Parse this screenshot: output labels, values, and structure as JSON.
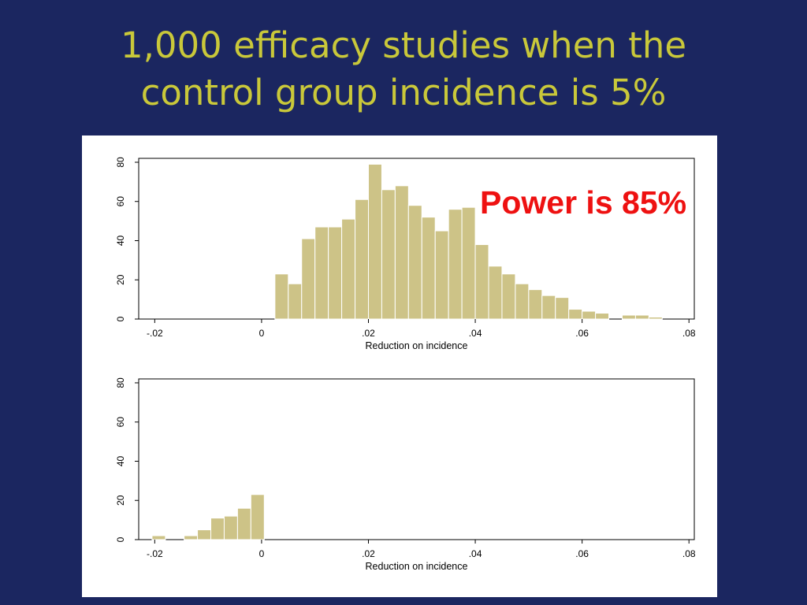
{
  "slide": {
    "title_line1": "1,000 efficacy studies when the",
    "title_line2": "control group incidence is 5%",
    "annotation": "Power is 85%",
    "annotation_color": "#ee1111",
    "title_color": "#c9c83a",
    "background_color": "#1b2660",
    "bar_color": "#cdc387"
  },
  "chart_data": [
    {
      "type": "bar",
      "xlabel": "Reduction on incidence",
      "ylabel": "",
      "xlim": [
        -0.023,
        0.081
      ],
      "ylim": [
        0,
        82
      ],
      "xticks": [
        -0.02,
        0,
        0.02,
        0.04,
        0.06,
        0.08
      ],
      "xtick_labels": [
        "-.02",
        "0",
        ".02",
        ".04",
        ".06",
        ".08"
      ],
      "yticks": [
        0,
        20,
        40,
        60,
        80
      ],
      "ytick_labels": [
        "0",
        "20",
        "40",
        "60",
        "80"
      ],
      "bin_width": 0.0025,
      "bins": [
        {
          "x": 0.0025,
          "y": 23
        },
        {
          "x": 0.005,
          "y": 18
        },
        {
          "x": 0.0075,
          "y": 41
        },
        {
          "x": 0.01,
          "y": 47
        },
        {
          "x": 0.0125,
          "y": 47
        },
        {
          "x": 0.015,
          "y": 51
        },
        {
          "x": 0.0175,
          "y": 61
        },
        {
          "x": 0.02,
          "y": 79
        },
        {
          "x": 0.0225,
          "y": 66
        },
        {
          "x": 0.025,
          "y": 68
        },
        {
          "x": 0.0275,
          "y": 58
        },
        {
          "x": 0.03,
          "y": 52
        },
        {
          "x": 0.0325,
          "y": 45
        },
        {
          "x": 0.035,
          "y": 56
        },
        {
          "x": 0.0375,
          "y": 57
        },
        {
          "x": 0.04,
          "y": 38
        },
        {
          "x": 0.0425,
          "y": 27
        },
        {
          "x": 0.045,
          "y": 23
        },
        {
          "x": 0.0475,
          "y": 18
        },
        {
          "x": 0.05,
          "y": 15
        },
        {
          "x": 0.0525,
          "y": 12
        },
        {
          "x": 0.055,
          "y": 11
        },
        {
          "x": 0.0575,
          "y": 5
        },
        {
          "x": 0.06,
          "y": 4
        },
        {
          "x": 0.0625,
          "y": 3
        },
        {
          "x": 0.0675,
          "y": 2
        },
        {
          "x": 0.07,
          "y": 2
        },
        {
          "x": 0.0725,
          "y": 1
        }
      ]
    },
    {
      "type": "bar",
      "xlabel": "Reduction on incidence",
      "ylabel": "",
      "xlim": [
        -0.023,
        0.081
      ],
      "ylim": [
        0,
        82
      ],
      "xticks": [
        -0.02,
        0,
        0.02,
        0.04,
        0.06,
        0.08
      ],
      "xtick_labels": [
        "-.02",
        "0",
        ".02",
        ".04",
        ".06",
        ".08"
      ],
      "yticks": [
        0,
        20,
        40,
        60,
        80
      ],
      "ytick_labels": [
        "0",
        "20",
        "40",
        "60",
        "80"
      ],
      "bin_width": 0.0025,
      "bins": [
        {
          "x": -0.0205,
          "y": 2
        },
        {
          "x": -0.0145,
          "y": 2
        },
        {
          "x": -0.012,
          "y": 5
        },
        {
          "x": -0.0095,
          "y": 11
        },
        {
          "x": -0.007,
          "y": 12
        },
        {
          "x": -0.0045,
          "y": 16
        },
        {
          "x": -0.002,
          "y": 23
        }
      ]
    }
  ]
}
